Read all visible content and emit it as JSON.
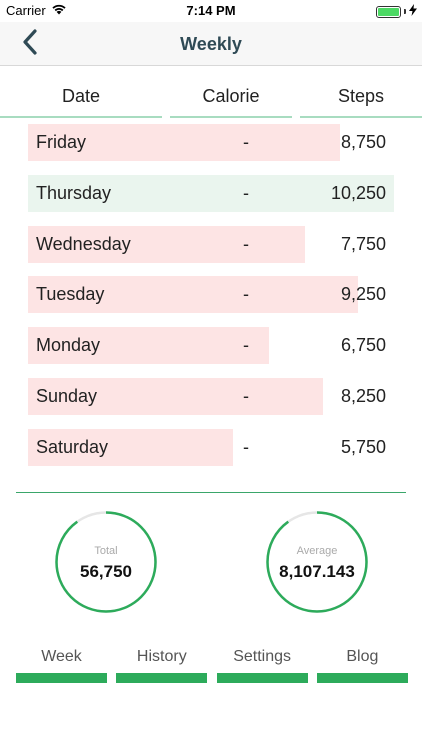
{
  "status_bar": {
    "carrier": "Carrier",
    "time": "7:14 PM",
    "battery_level": 1.0,
    "battery_color": "#4cd964"
  },
  "nav": {
    "title": "Weekly",
    "back_icon": "chevron-left-icon"
  },
  "columns": {
    "date": "Date",
    "calorie": "Calorie",
    "steps": "Steps"
  },
  "rows": [
    {
      "day": "Friday",
      "calorie": "-",
      "steps": "8,750",
      "steps_value": 8750,
      "status": "below"
    },
    {
      "day": "Thursday",
      "calorie": "-",
      "steps": "10,250",
      "steps_value": 10250,
      "status": "above"
    },
    {
      "day": "Wednesday",
      "calorie": "-",
      "steps": "7,750",
      "steps_value": 7750,
      "status": "below"
    },
    {
      "day": "Tuesday",
      "calorie": "-",
      "steps": "9,250",
      "steps_value": 9250,
      "status": "below"
    },
    {
      "day": "Monday",
      "calorie": "-",
      "steps": "6,750",
      "steps_value": 6750,
      "status": "below"
    },
    {
      "day": "Sunday",
      "calorie": "-",
      "steps": "8,250",
      "steps_value": 8250,
      "status": "below"
    },
    {
      "day": "Saturday",
      "calorie": "-",
      "steps": "5,750",
      "steps_value": 5750,
      "status": "below"
    }
  ],
  "colors": {
    "below_goal": "#fde4e4",
    "above_goal": "#eaf5ee",
    "accent": "#2dab5b",
    "ring_track": "#e6e6e6"
  },
  "stats": {
    "total": {
      "label": "Total",
      "value": "56,750",
      "progress": 0.9
    },
    "average": {
      "label": "Average",
      "value": "8,107.143",
      "progress": 0.9
    }
  },
  "tabs": [
    {
      "label": "Week"
    },
    {
      "label": "History"
    },
    {
      "label": "Settings"
    },
    {
      "label": "Blog"
    }
  ]
}
